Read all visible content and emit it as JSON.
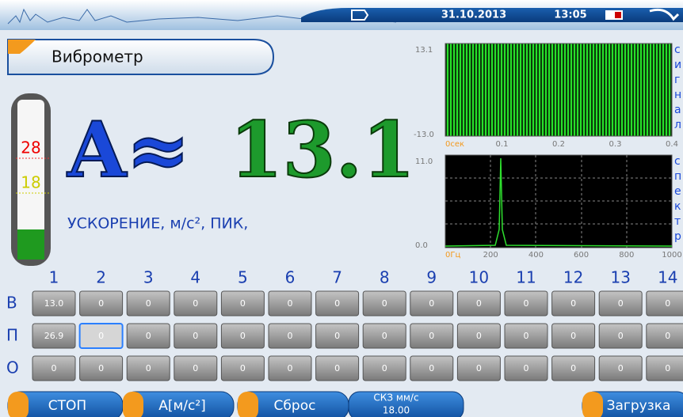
{
  "status": {
    "date": "31.10.2013",
    "time": "13:05"
  },
  "title": "Виброметр",
  "gauge": {
    "upper": "28",
    "lower": "18"
  },
  "reading": {
    "symbol": "A≈",
    "value": "13.1",
    "unit": "УСКОРЕНИЕ, м/с², ПИК,"
  },
  "signal": {
    "ymax": "13.1",
    "ymin": "-13.0",
    "xlabels": [
      "0сек",
      "0.1",
      "0.2",
      "0.3",
      "0.4"
    ],
    "side": "сигнал"
  },
  "spectrum": {
    "ymax": "11.0",
    "ymin": "0.0",
    "xlabels": [
      "0Гц",
      "200",
      "400",
      "600",
      "800",
      "1000"
    ],
    "side": "спектр"
  },
  "grid": {
    "columns": [
      "1",
      "2",
      "3",
      "4",
      "5",
      "6",
      "7",
      "8",
      "9",
      "10",
      "11",
      "12",
      "13",
      "14"
    ],
    "rows": [
      {
        "label": "В",
        "cells": [
          "13.0",
          "0",
          "0",
          "0",
          "0",
          "0",
          "0",
          "0",
          "0",
          "0",
          "0",
          "0",
          "0",
          "0"
        ]
      },
      {
        "label": "П",
        "cells": [
          "26.9",
          "0",
          "0",
          "0",
          "0",
          "0",
          "0",
          "0",
          "0",
          "0",
          "0",
          "0",
          "0",
          "0"
        ]
      },
      {
        "label": "О",
        "cells": [
          "0",
          "0",
          "0",
          "0",
          "0",
          "0",
          "0",
          "0",
          "0",
          "0",
          "0",
          "0",
          "0",
          "0"
        ]
      }
    ]
  },
  "buttons": {
    "stop": "СТОП",
    "mode": "A[м/с²]",
    "reset": "Сброс",
    "rms": "СКЗ мм/с",
    "rms_value": "18.00",
    "load": "Загрузка"
  }
}
